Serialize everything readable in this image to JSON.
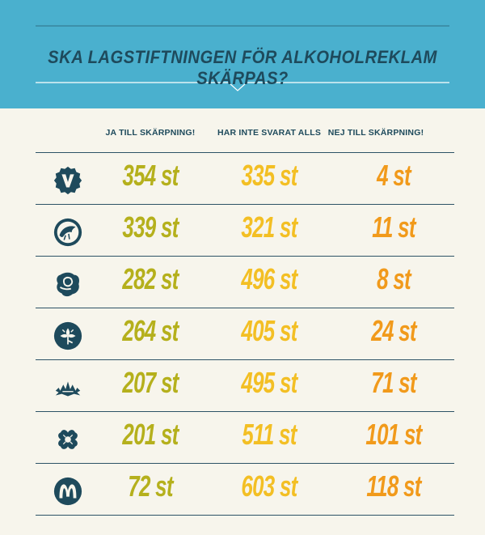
{
  "header": {
    "title": "SKA LAGSTIFTNINGEN FÖR ALKOHOLREKLAM SKÄRPAS?"
  },
  "columns": {
    "yes": "JA TILL SKÄRPNING!",
    "no_answer": "HAR INTE SVARAT ALLS",
    "no": "NEJ TILL SKÄRPNING!"
  },
  "rows": [
    {
      "party_icon": "v-party-logo",
      "yes": "354 st",
      "no_answer": "335 st",
      "no": "4 st"
    },
    {
      "party_icon": "green-party-logo",
      "yes": "339 st",
      "no_answer": "321 st",
      "no": "11 st"
    },
    {
      "party_icon": "social-democrats-rose-logo",
      "yes": "282 st",
      "no_answer": "496 st",
      "no": "8 st"
    },
    {
      "party_icon": "centre-party-clover-logo",
      "yes": "264 st",
      "no_answer": "405 st",
      "no": "24 st"
    },
    {
      "party_icon": "liberal-logo",
      "yes": "207 st",
      "no_answer": "495 st",
      "no": "71 st"
    },
    {
      "party_icon": "clover-logo",
      "yes": "201 st",
      "no_answer": "511 st",
      "no": "101 st"
    },
    {
      "party_icon": "moderates-m-logo",
      "yes": "72 st",
      "no_answer": "603 st",
      "no": "118 st"
    }
  ],
  "colors": {
    "header_bg": "#4ab0ce",
    "title": "#1e4a5c",
    "yes": "#b5b01c",
    "no_answer": "#f3bf24",
    "no": "#f19a1b",
    "icon": "#1e4a5c"
  },
  "chart_data": {
    "type": "table",
    "title": "SKA LAGSTIFTNINGEN FÖR ALKOHOLREKLAM SKÄRPAS?",
    "columns": [
      "JA TILL SKÄRPNING!",
      "HAR INTE SVARAT ALLS",
      "NEJ TILL SKÄRPNING!"
    ],
    "unit": "st",
    "series": [
      {
        "name": "JA TILL SKÄRPNING!",
        "values": [
          354,
          339,
          282,
          264,
          207,
          201,
          72
        ]
      },
      {
        "name": "HAR INTE SVARAT ALLS",
        "values": [
          335,
          321,
          496,
          405,
          495,
          511,
          603
        ]
      },
      {
        "name": "NEJ TILL SKÄRPNING!",
        "values": [
          4,
          11,
          8,
          24,
          71,
          101,
          118
        ]
      }
    ]
  }
}
